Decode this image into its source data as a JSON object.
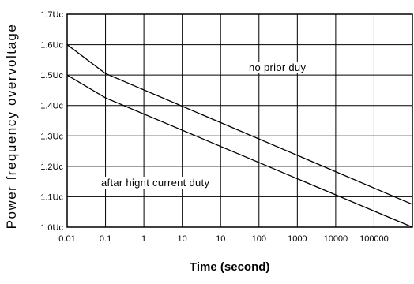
{
  "chart_data": {
    "type": "line",
    "title": "",
    "xlabel": "Time (second)",
    "ylabel": "Power frequency overvoltage",
    "x_ticks": [
      "0.01",
      "0.1",
      "1",
      "10",
      "10",
      "100",
      "1000",
      "10000",
      "100000"
    ],
    "y_ticks": [
      "1.0Uc",
      "1.1Uc",
      "1.2Uc",
      "1.3Uc",
      "1.4Uc",
      "1.5Uc",
      "1.6Uc",
      "1.7Uc"
    ],
    "ylim": [
      1.0,
      1.7
    ],
    "grid": true,
    "series": [
      {
        "label": "no prior duy",
        "x_index": [
          0,
          1,
          9.5
        ],
        "values": [
          1.6,
          1.505,
          1.075
        ]
      },
      {
        "label": "aftar hignt current duty",
        "x_index": [
          0,
          1,
          9.5
        ],
        "values": [
          1.5,
          1.425,
          0.985
        ]
      }
    ]
  }
}
